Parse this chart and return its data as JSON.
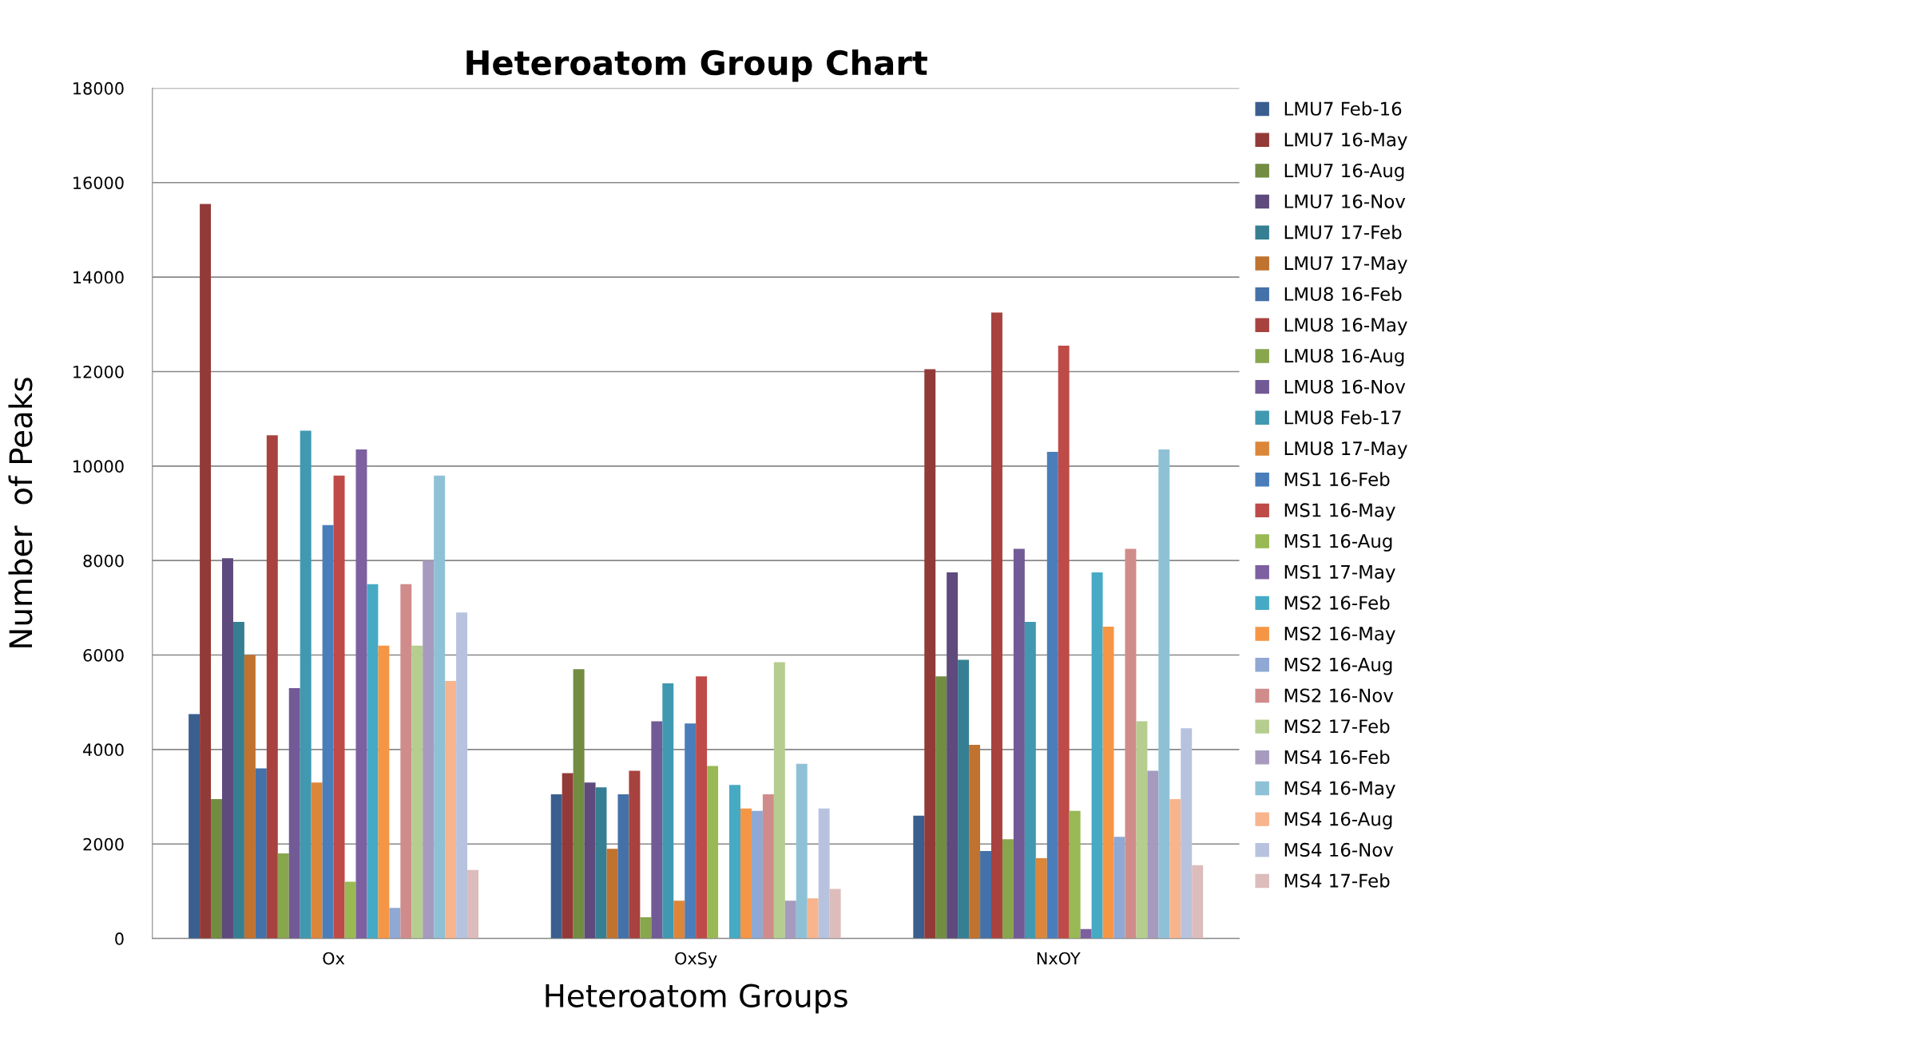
{
  "chart_data": {
    "type": "bar",
    "title": "Heteroatom Group Chart",
    "xlabel": "Heteroatom Groups",
    "ylabel": "Number  of Peaks",
    "categories": [
      "Ox",
      "OxSy",
      "NxOY"
    ],
    "ylim": [
      0,
      18000
    ],
    "yticks": [
      0,
      2000,
      4000,
      6000,
      8000,
      10000,
      12000,
      14000,
      16000,
      18000
    ],
    "grid": "y",
    "legend": "right",
    "series": [
      {
        "name": "LMU7 Feb-16",
        "color": "#3a5f8f",
        "values": [
          4750,
          3050,
          2600
        ]
      },
      {
        "name": "LMU7 16-May",
        "color": "#923a37",
        "values": [
          15550,
          3500,
          12050
        ]
      },
      {
        "name": "LMU7 16-Aug",
        "color": "#728c42",
        "values": [
          2950,
          5700,
          5550
        ]
      },
      {
        "name": "LMU7 16-Nov",
        "color": "#5e4a7c",
        "values": [
          8050,
          3300,
          7750
        ]
      },
      {
        "name": "LMU7 17-Feb",
        "color": "#367f93",
        "values": [
          6700,
          3200,
          5900
        ]
      },
      {
        "name": "LMU7 17-May",
        "color": "#c0722f",
        "values": [
          6000,
          1900,
          4100
        ]
      },
      {
        "name": "LMU8 16-Feb",
        "color": "#4471a8",
        "values": [
          3600,
          3050,
          1850
        ]
      },
      {
        "name": "LMU8 16-May",
        "color": "#a8423f",
        "values": [
          10650,
          3550,
          13250
        ]
      },
      {
        "name": "LMU8 16-Aug",
        "color": "#88a64e",
        "values": [
          1800,
          450,
          2100
        ]
      },
      {
        "name": "LMU8 16-Nov",
        "color": "#725a96",
        "values": [
          5300,
          4600,
          8250
        ]
      },
      {
        "name": "LMU8 Feb-17",
        "color": "#4199b1",
        "values": [
          10750,
          5400,
          6700
        ]
      },
      {
        "name": "LMU8 17-May",
        "color": "#dc8639",
        "values": [
          3300,
          800,
          1700
        ]
      },
      {
        "name": "MS1 16-Feb",
        "color": "#4a7ebb",
        "values": [
          8750,
          4550,
          10300
        ]
      },
      {
        "name": "MS1 16-May",
        "color": "#be4b48",
        "values": [
          9800,
          5550,
          12550
        ]
      },
      {
        "name": "MS1 16-Aug",
        "color": "#98b954",
        "values": [
          1200,
          3650,
          2700
        ]
      },
      {
        "name": "MS1 17-May",
        "color": "#7d60a0",
        "values": [
          10350,
          null,
          200
        ]
      },
      {
        "name": "MS2 16-Feb",
        "color": "#46aac5",
        "values": [
          7500,
          3250,
          7750
        ]
      },
      {
        "name": "MS2 16-May",
        "color": "#f59646",
        "values": [
          6200,
          2750,
          6600
        ]
      },
      {
        "name": "MS2 16-Aug",
        "color": "#8fa8d4",
        "values": [
          650,
          2700,
          2150
        ]
      },
      {
        "name": "MS2 16-Nov",
        "color": "#d08c8b",
        "values": [
          7500,
          3050,
          8250
        ]
      },
      {
        "name": "MS2 17-Feb",
        "color": "#b5cd8f",
        "values": [
          6200,
          5850,
          4600
        ]
      },
      {
        "name": "MS4 16-Feb",
        "color": "#a69bbe",
        "values": [
          8000,
          800,
          3550
        ]
      },
      {
        "name": "MS4 16-May",
        "color": "#8fc1d6",
        "values": [
          9800,
          3700,
          10350
        ]
      },
      {
        "name": "MS4 16-Aug",
        "color": "#f7b48d",
        "values": [
          5450,
          850,
          2950
        ]
      },
      {
        "name": "MS4 16-Nov",
        "color": "#b7c3de",
        "values": [
          6900,
          2750,
          4450
        ]
      },
      {
        "name": "MS4 17-Feb",
        "color": "#ddbcbc",
        "values": [
          1450,
          1050,
          1550
        ]
      }
    ]
  }
}
